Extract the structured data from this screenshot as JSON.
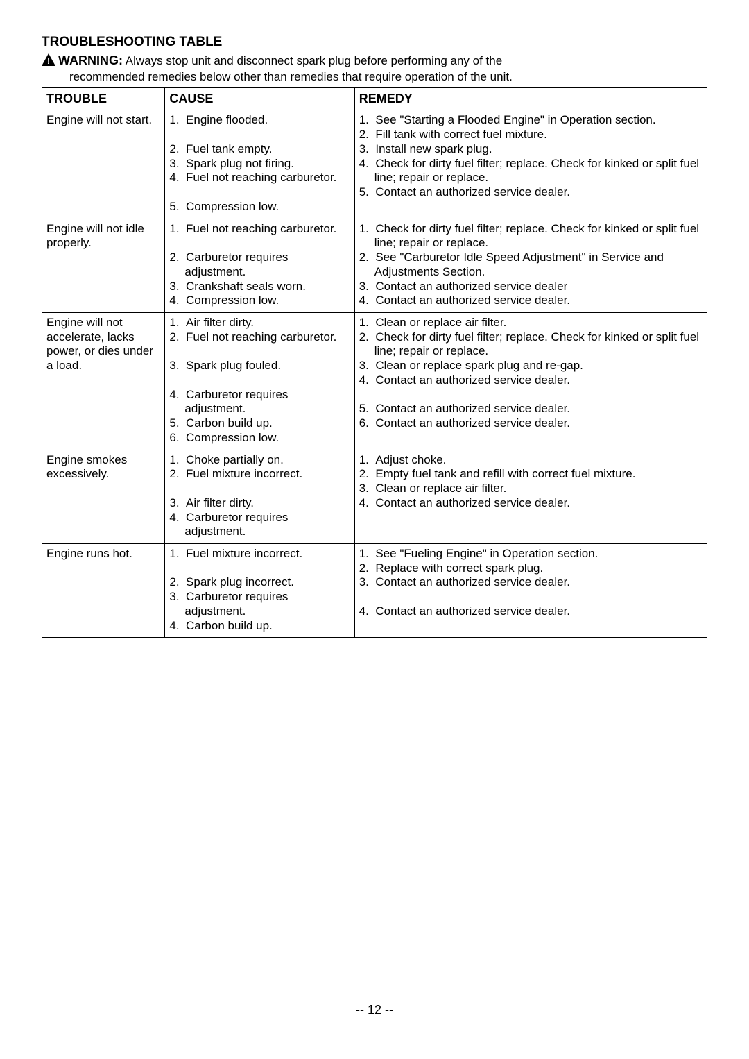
{
  "page": {
    "title": "TROUBLESHOOTING TABLE",
    "warning_label": "WARNING:",
    "warning_text_1": "Always stop unit and disconnect spark plug before performing any of the",
    "warning_text_2": "recommended remedies below other than remedies that require operation of the unit.",
    "page_number": "-- 12 --"
  },
  "headers": {
    "trouble": "TROUBLE",
    "cause": "CAUSE",
    "remedy": "REMEDY"
  },
  "rows": [
    {
      "trouble": "Engine will not start.",
      "causes": [
        "1.  Engine flooded.",
        "",
        "2.  Fuel tank empty.",
        "3.  Spark plug not firing.",
        "4.  Fuel not reaching carburetor.",
        "",
        "5.  Compression low."
      ],
      "remedies": [
        "1.  See \"Starting a Flooded Engine\" in Operation section.",
        "2.  Fill tank with correct fuel mixture.",
        "3.  Install new spark plug.",
        "4.  Check for dirty fuel filter; replace. Check for kinked or split fuel line; repair or replace.",
        "5.  Contact an authorized service dealer."
      ]
    },
    {
      "trouble": "Engine will not idle properly.",
      "causes": [
        "1.  Fuel not reaching carburetor.",
        "",
        "2.  Carburetor requires adjustment.",
        "3.  Crankshaft seals worn.",
        "4.  Compression low."
      ],
      "remedies": [
        "1.  Check for dirty fuel filter; replace. Check for kinked or split fuel line; repair or replace.",
        "2.  See \"Carburetor Idle Speed Adjustment\" in Service and Adjustments Section.",
        "3.  Contact an authorized service dealer",
        "4.  Contact an authorized service dealer."
      ]
    },
    {
      "trouble": "Engine will not accelerate, lacks power, or dies under a load.",
      "causes": [
        "1.  Air filter dirty.",
        "2.  Fuel not reaching carburetor.",
        "",
        "3.  Spark plug fouled.",
        "",
        "4.  Carburetor requires adjustment.",
        "5.  Carbon build up.",
        "6.  Compression low."
      ],
      "remedies": [
        "1.  Clean or replace air filter.",
        "2.  Check for dirty fuel filter; replace. Check for kinked or split fuel line; repair or replace.",
        "3.  Clean or replace spark plug and re-gap.",
        "4.  Contact an authorized service dealer.",
        "",
        "5.  Contact an authorized service dealer.",
        "6.  Contact an authorized service dealer."
      ]
    },
    {
      "trouble": "Engine smokes excessively.",
      "causes": [
        "1.  Choke partially on.",
        "2.  Fuel mixture incorrect.",
        "",
        "3.  Air filter dirty.",
        "4.  Carburetor requires adjustment."
      ],
      "remedies": [
        "1.  Adjust choke.",
        "2.  Empty fuel tank and refill with correct fuel mixture.",
        "3.  Clean or replace air filter.",
        "4.  Contact an authorized service dealer."
      ]
    },
    {
      "trouble": "Engine runs hot.",
      "causes": [
        "1.  Fuel mixture incorrect.",
        "",
        "2.  Spark plug incorrect.",
        "3.  Carburetor requires adjustment.",
        "4.  Carbon build up."
      ],
      "remedies": [
        "1.  See \"Fueling Engine\" in Operation section.",
        "2.  Replace with correct spark plug.",
        "3.  Contact an authorized service dealer.",
        "",
        "4.  Contact an authorized service dealer."
      ]
    }
  ]
}
